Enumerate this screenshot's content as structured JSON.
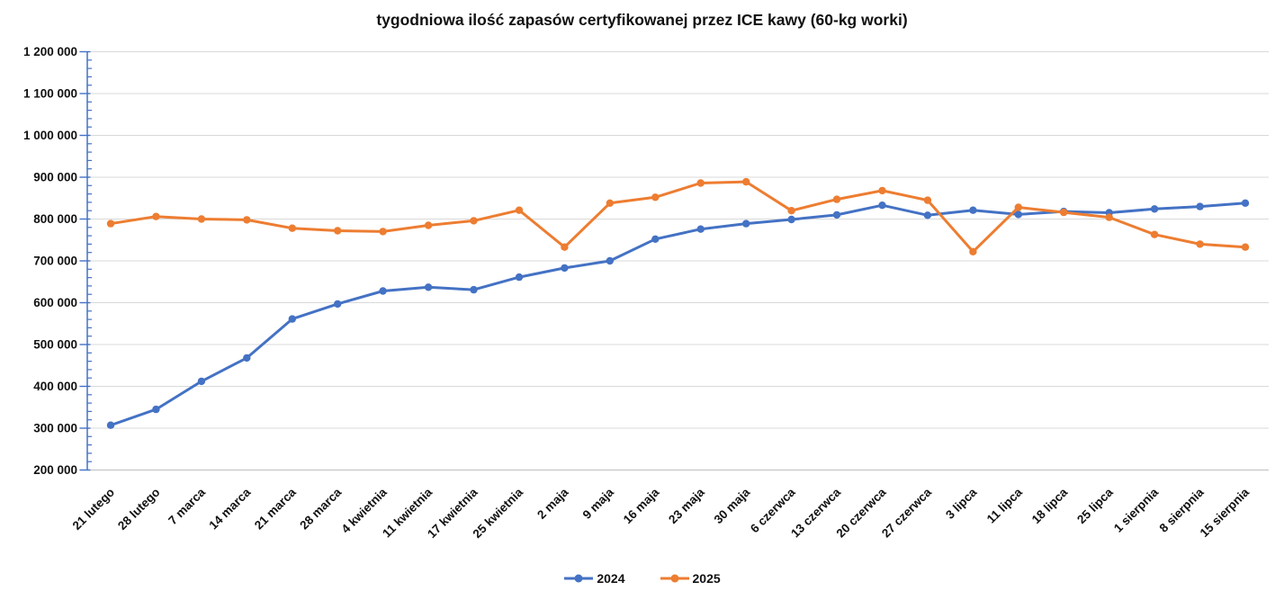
{
  "chart_data": {
    "type": "line",
    "title": "tygodniowa ilość zapasów certyfikowanej przez ICE kawy (60-kg worki)",
    "categories": [
      "21 lutego",
      "28 lutego",
      "7 marca",
      "14 marca",
      "21 marca",
      "28 marca",
      "4 kwietnia",
      "11 kwietnia",
      "17 kwietnia",
      "25 kwietnia",
      "2 maja",
      "9 maja",
      "16 maja",
      "23 maja",
      "30 maja",
      "6 czerwca",
      "13 czerwca",
      "20 czerwca",
      "27 czerwca",
      "3 lipca",
      "11 lipca",
      "18 lipca",
      "25 lipca",
      "1 sierpnia",
      "8 sierpnia",
      "15 sierpnia"
    ],
    "series": [
      {
        "name": "2024",
        "color": "#4472C4",
        "values": [
          307000,
          345000,
          412000,
          468000,
          561000,
          597000,
          628000,
          637000,
          631000,
          661000,
          683000,
          700000,
          752000,
          776000,
          789000,
          799000,
          810000,
          833000,
          809000,
          821000,
          811000,
          818000,
          815000,
          824000,
          830000,
          838000
        ]
      },
      {
        "name": "2025",
        "color": "#ED7D31",
        "values": [
          789000,
          806000,
          800000,
          798000,
          778000,
          772000,
          770000,
          785000,
          796000,
          821000,
          733000,
          838000,
          852000,
          886000,
          889000,
          820000,
          847000,
          868000,
          845000,
          722000,
          828000,
          816000,
          804000,
          763000,
          740000,
          733000
        ]
      }
    ],
    "ylim": [
      200000,
      1200000
    ],
    "y_major_step": 100000,
    "y_minor_step": 20000,
    "y_tick_labels": [
      "200 000",
      "300 000",
      "400 000",
      "500 000",
      "600 000",
      "700 000",
      "800 000",
      "900 000",
      "1 000 000",
      "1 100 000",
      "1 200 000"
    ],
    "grid": true,
    "legend_position": "bottom",
    "axis_color": "#4472C4",
    "grid_color": "#D9D9D9",
    "baseline_color": "#BFBFBF",
    "label_color": "#111111"
  }
}
